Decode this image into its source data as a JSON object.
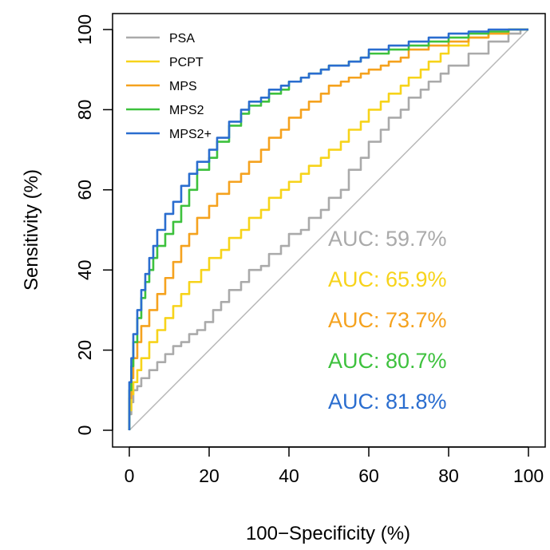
{
  "chart_data": {
    "type": "line",
    "xlabel": "100−Specificity (%)",
    "ylabel": "Sensitivity (%)",
    "xlim": [
      0,
      100
    ],
    "ylim": [
      0,
      100
    ],
    "x_ticks": [
      "0",
      "20",
      "40",
      "60",
      "80",
      "100"
    ],
    "y_ticks": [
      "0",
      "20",
      "40",
      "60",
      "80",
      "100"
    ],
    "grid": false,
    "legend_position": "top-left",
    "reference_line": {
      "from": [
        0,
        0
      ],
      "to": [
        100,
        100
      ],
      "color": "#b8b8b8"
    },
    "series": [
      {
        "name": "PSA",
        "color": "#aaaaaa",
        "auc_label": "AUC: 59.7%",
        "x": [
          0,
          0.5,
          1,
          2,
          3,
          5,
          7,
          9,
          11,
          13,
          15,
          17,
          19,
          21,
          23,
          25,
          28,
          30,
          33,
          35,
          38,
          40,
          43,
          45,
          48,
          50,
          53,
          55,
          58,
          60,
          63,
          65,
          68,
          70,
          73,
          75,
          78,
          80,
          85,
          90,
          95,
          98,
          100
        ],
        "y": [
          0,
          4,
          7,
          10,
          11,
          13,
          15,
          17,
          19,
          21,
          22,
          24,
          25,
          27,
          30,
          32,
          35,
          37,
          40,
          41,
          44,
          46,
          49,
          50,
          53,
          55,
          58,
          60,
          65,
          68,
          72,
          75,
          78,
          80,
          83,
          85,
          87,
          89,
          91,
          94,
          97,
          99,
          100
        ]
      },
      {
        "name": "PCPT",
        "color": "#f7d31a",
        "auc_label": "AUC: 65.9%",
        "x": [
          0,
          0.5,
          1,
          2,
          3,
          5,
          7,
          9,
          11,
          13,
          15,
          18,
          20,
          23,
          25,
          28,
          30,
          33,
          35,
          38,
          40,
          43,
          45,
          48,
          50,
          53,
          55,
          58,
          60,
          63,
          65,
          68,
          70,
          73,
          75,
          78,
          80,
          85,
          90,
          95,
          100
        ],
        "y": [
          0,
          5,
          9,
          12,
          15,
          18,
          22,
          25,
          28,
          31,
          34,
          37,
          40,
          43,
          45,
          48,
          50,
          53,
          55,
          58,
          60,
          62,
          64,
          66,
          68,
          70,
          72,
          75,
          77,
          80,
          82,
          84,
          86,
          88,
          90,
          92,
          94,
          96,
          98,
          99,
          100
        ]
      },
      {
        "name": "MPS",
        "color": "#f5a21e",
        "auc_label": "AUC: 73.7%",
        "x": [
          0,
          0.5,
          1,
          2,
          3,
          5,
          7,
          9,
          11,
          13,
          15,
          17,
          20,
          22,
          25,
          28,
          30,
          33,
          35,
          38,
          40,
          43,
          45,
          48,
          50,
          53,
          55,
          58,
          60,
          63,
          65,
          68,
          70,
          75,
          80,
          85,
          90,
          95,
          100
        ],
        "y": [
          0,
          8,
          13,
          18,
          22,
          26,
          30,
          34,
          38,
          42,
          46,
          49,
          53,
          56,
          59,
          62,
          64,
          67,
          70,
          73,
          75,
          78,
          80,
          82,
          84,
          86,
          87,
          88,
          89,
          90,
          91,
          92,
          93,
          95,
          96,
          97,
          98,
          99,
          100
        ]
      },
      {
        "name": "MPS2",
        "color": "#3dc13d",
        "auc_label": "AUC: 80.7%",
        "x": [
          0,
          0.5,
          1,
          2,
          3,
          4,
          5,
          6,
          7,
          9,
          11,
          13,
          15,
          17,
          20,
          22,
          25,
          28,
          30,
          33,
          35,
          38,
          40,
          43,
          45,
          48,
          50,
          53,
          55,
          58,
          60,
          65,
          70,
          75,
          80,
          85,
          90,
          95,
          100
        ],
        "y": [
          0,
          10,
          16,
          22,
          28,
          33,
          37,
          40,
          43,
          46,
          49,
          52,
          56,
          60,
          65,
          68,
          72,
          76,
          79,
          81,
          82,
          84,
          85,
          87,
          88,
          89,
          90,
          91,
          91,
          92,
          93,
          94,
          95,
          96,
          97,
          98,
          99,
          99.5,
          100
        ]
      },
      {
        "name": "MPS2+",
        "color": "#2a6dcf",
        "auc_label": "AUC: 81.8%",
        "x": [
          0,
          0.5,
          1,
          2,
          3,
          4,
          5,
          6,
          7,
          9,
          11,
          13,
          15,
          17,
          20,
          22,
          25,
          28,
          30,
          33,
          35,
          38,
          40,
          43,
          45,
          48,
          50,
          53,
          55,
          58,
          60,
          65,
          70,
          75,
          80,
          85,
          90,
          95,
          100
        ],
        "y": [
          0,
          12,
          18,
          24,
          30,
          35,
          39,
          43,
          46,
          50,
          54,
          57,
          61,
          64,
          67,
          70,
          73,
          77,
          80,
          82,
          83,
          85,
          86,
          87,
          88,
          89,
          90,
          91,
          91,
          92,
          93,
          95,
          96,
          97,
          98,
          99,
          99.5,
          100,
          100
        ]
      }
    ]
  }
}
